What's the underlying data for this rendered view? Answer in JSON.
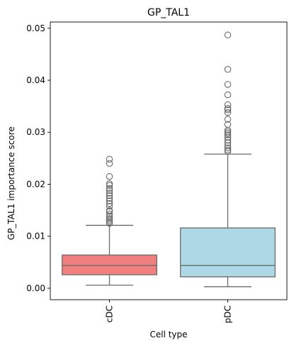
{
  "chart_data": {
    "type": "box",
    "title": "GP_TAL1",
    "xlabel": "Cell type",
    "ylabel": "GP_TAL1 importance score",
    "ylim": [
      -0.0022,
      0.0512
    ],
    "yticks": [
      0.0,
      0.01,
      0.02,
      0.03,
      0.04,
      0.05
    ],
    "ytick_labels": [
      "0.00",
      "0.01",
      "0.02",
      "0.03",
      "0.04",
      "0.05"
    ],
    "grid": false,
    "legend": "none",
    "categories": [
      "cDC",
      "pDC"
    ],
    "boxes": [
      {
        "category": "cDC",
        "color": "#f08080",
        "whisker_low": 0.0006,
        "q1": 0.0026,
        "median": 0.0044,
        "q3": 0.0064,
        "whisker_high": 0.0121,
        "outliers": [
          0.0125,
          0.0128,
          0.0131,
          0.0134,
          0.0138,
          0.0143,
          0.0148,
          0.015,
          0.0158,
          0.0163,
          0.0168,
          0.0173,
          0.0178,
          0.0183,
          0.0188,
          0.0192,
          0.0198,
          0.0201,
          0.0215,
          0.024,
          0.0248
        ]
      },
      {
        "category": "pDC",
        "color": "#add8e6",
        "whisker_low": 0.0003,
        "q1": 0.0022,
        "median": 0.0044,
        "q3": 0.0116,
        "whisker_high": 0.0258,
        "outliers": [
          0.0263,
          0.0266,
          0.027,
          0.0274,
          0.028,
          0.0285,
          0.029,
          0.0295,
          0.0298,
          0.0301,
          0.0304,
          0.0315,
          0.0325,
          0.0338,
          0.0343,
          0.0346,
          0.0353,
          0.0372,
          0.0392,
          0.0421,
          0.0487
        ]
      }
    ],
    "line_color": "#6b6b6b"
  }
}
